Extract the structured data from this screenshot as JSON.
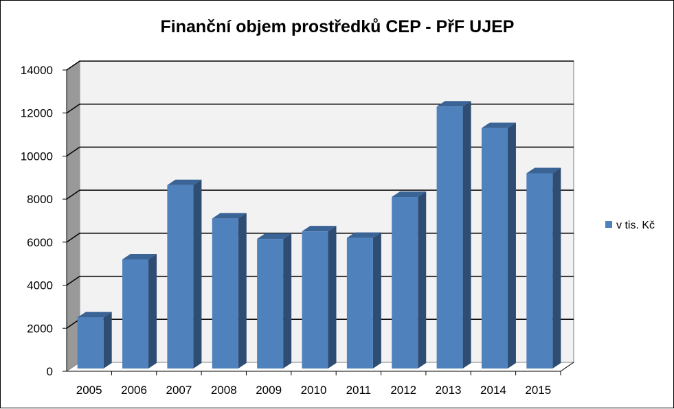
{
  "chart_data": {
    "type": "bar",
    "title": "Finanční objem prostředků CEP -  PřF UJEP",
    "categories": [
      "2005",
      "2006",
      "2007",
      "2008",
      "2009",
      "2010",
      "2011",
      "2012",
      "2013",
      "2014",
      "2015"
    ],
    "series": [
      {
        "name": "v tis. Kč",
        "values": [
          2500,
          5200,
          8650,
          7100,
          6150,
          6500,
          6200,
          8100,
          12300,
          11300,
          9200
        ]
      }
    ],
    "xlabel": "",
    "ylabel": "",
    "ylim": [
      0,
      14000
    ],
    "yticks": [
      0,
      2000,
      4000,
      6000,
      8000,
      10000,
      12000,
      14000
    ],
    "grid": true,
    "legend_position": "right",
    "colors": {
      "bar_front": "#4f81bd",
      "bar_side": "#2f4d73",
      "bar_top": "#3a6396",
      "wall": "#f2f2f2",
      "left_wall": "#999999",
      "floor": "#ffffff",
      "gridline": "#000000"
    }
  }
}
